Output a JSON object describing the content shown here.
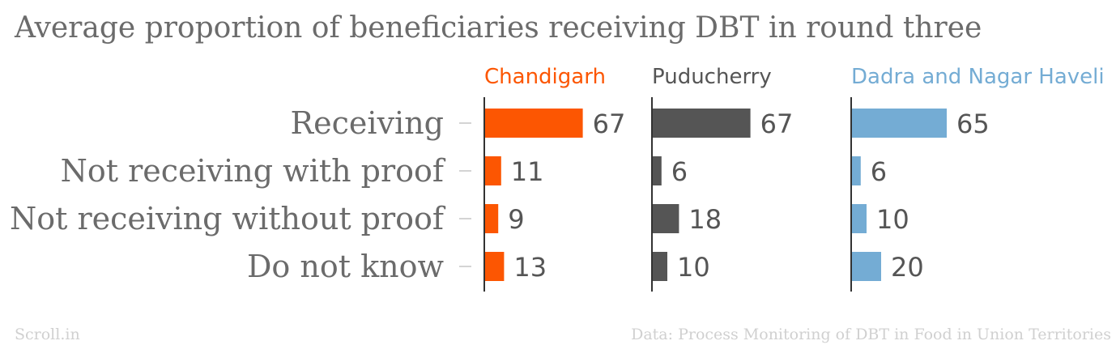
{
  "chart_data": {
    "type": "bar",
    "title": "Average proportion of beneficiaries receiving DBT in round three",
    "categories": [
      "Receiving",
      "Not receiving with proof",
      "Not receiving without proof",
      "Do not know"
    ],
    "series": [
      {
        "name": "Chandigarh",
        "color": "#fc5602",
        "values": [
          67,
          11,
          9,
          13
        ]
      },
      {
        "name": "Puducherry",
        "color": "#555555",
        "values": [
          67,
          6,
          18,
          10
        ]
      },
      {
        "name": "Dadra and Nagar Haveli",
        "color": "#74acd4",
        "values": [
          65,
          6,
          10,
          20
        ]
      }
    ],
    "xlim": [
      0,
      100
    ]
  },
  "footer": {
    "source_brand": "Scroll.in",
    "data_credit": "Data: Process Monitoring of DBT in Food in Union Territories"
  }
}
